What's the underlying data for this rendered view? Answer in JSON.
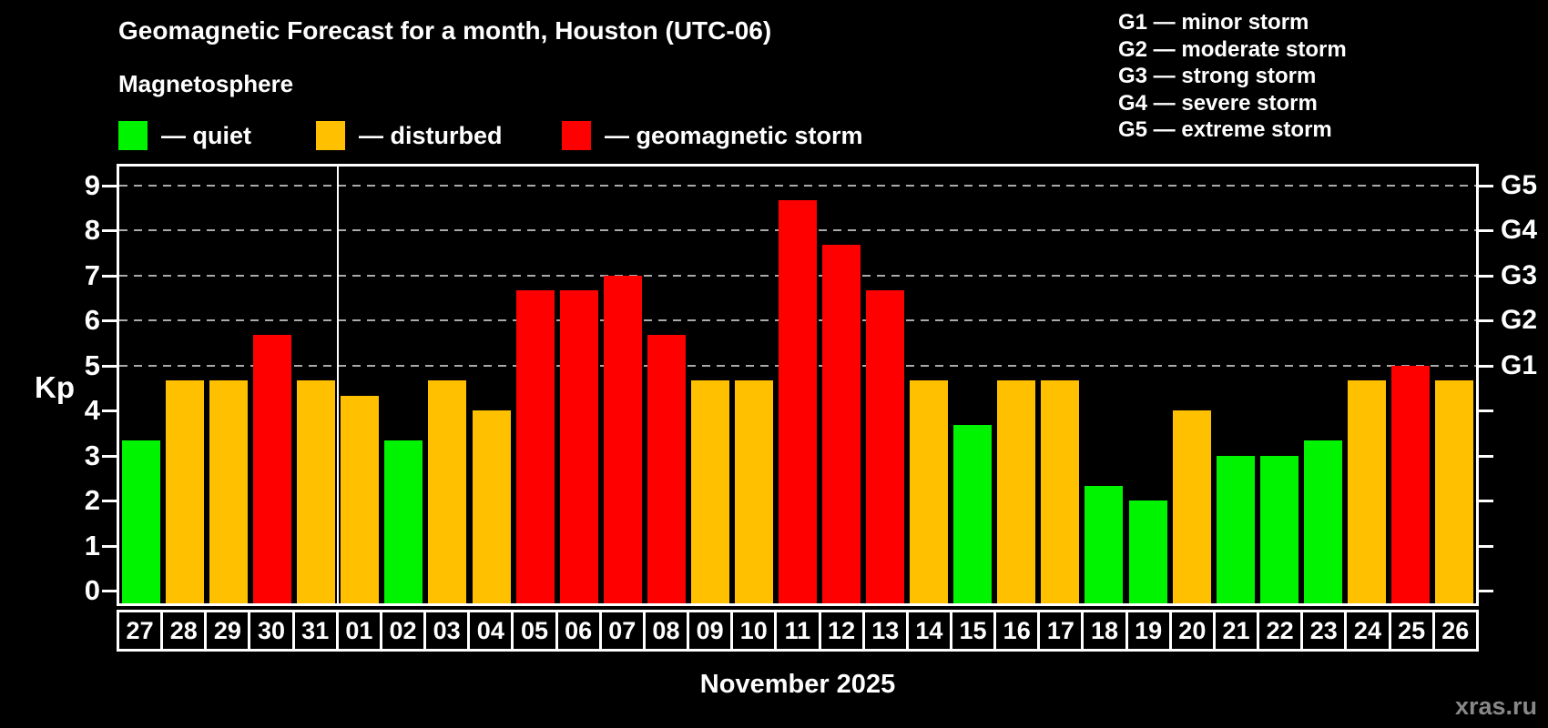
{
  "header": {
    "title": "Geomagnetic Forecast for a month, Houston (UTC-06)",
    "subtitle": "Magnetosphere"
  },
  "legend": {
    "quiet_label": "— quiet",
    "disturbed_label": "— disturbed",
    "storm_label": "— geomagnetic storm"
  },
  "g_legend": [
    "G1 — minor storm",
    "G2 — moderate storm",
    "G3 — strong storm",
    "G4 — severe storm",
    "G5 — extreme storm"
  ],
  "footer": {
    "month_label": "November 2025",
    "watermark": "xras.ru"
  },
  "colors": {
    "background": "#000000",
    "quiet": "#00f400",
    "disturbed": "#ffc000",
    "storm": "#ff0000",
    "axis": "#ffffff",
    "grid": "#aaaaaa",
    "text": "#ffffff",
    "watermark": "#888888"
  },
  "chart_data": {
    "type": "bar",
    "title": "Geomagnetic Forecast for a month, Houston (UTC-06)",
    "xlabel": "November 2025",
    "ylabel": "Kp",
    "ylim": [
      0,
      9
    ],
    "grid": "dashed horizontal lines at Kp 5-9",
    "legend_position": "top-left and top-right",
    "categories": [
      "27",
      "28",
      "29",
      "30",
      "31",
      "01",
      "02",
      "03",
      "04",
      "05",
      "06",
      "07",
      "08",
      "09",
      "10",
      "11",
      "12",
      "13",
      "14",
      "15",
      "16",
      "17",
      "18",
      "19",
      "20",
      "21",
      "22",
      "23",
      "24",
      "25",
      "26"
    ],
    "values": [
      3.33,
      4.67,
      4.67,
      5.67,
      4.67,
      4.33,
      3.33,
      4.67,
      4.0,
      6.67,
      6.67,
      7.0,
      5.67,
      4.67,
      4.67,
      8.67,
      7.67,
      6.67,
      4.67,
      3.67,
      4.67,
      4.67,
      2.33,
      2.0,
      4.0,
      3.0,
      3.0,
      3.33,
      4.67,
      5.0,
      4.67
    ],
    "levels": [
      "quiet",
      "disturbed",
      "disturbed",
      "storm",
      "disturbed",
      "disturbed",
      "quiet",
      "disturbed",
      "disturbed",
      "storm",
      "storm",
      "storm",
      "storm",
      "disturbed",
      "disturbed",
      "storm",
      "storm",
      "storm",
      "disturbed",
      "quiet",
      "disturbed",
      "disturbed",
      "quiet",
      "quiet",
      "disturbed",
      "quiet",
      "quiet",
      "quiet",
      "disturbed",
      "storm",
      "disturbed"
    ],
    "yticks": [
      0,
      1,
      2,
      3,
      4,
      5,
      6,
      7,
      8,
      9
    ],
    "right_axis": [
      {
        "value": 5,
        "label": "G1"
      },
      {
        "value": 6,
        "label": "G2"
      },
      {
        "value": 7,
        "label": "G3"
      },
      {
        "value": 8,
        "label": "G4"
      },
      {
        "value": 9,
        "label": "G5"
      }
    ],
    "grid_levels": [
      5,
      6,
      7,
      8,
      9
    ],
    "month_separator_before_category": "01"
  }
}
